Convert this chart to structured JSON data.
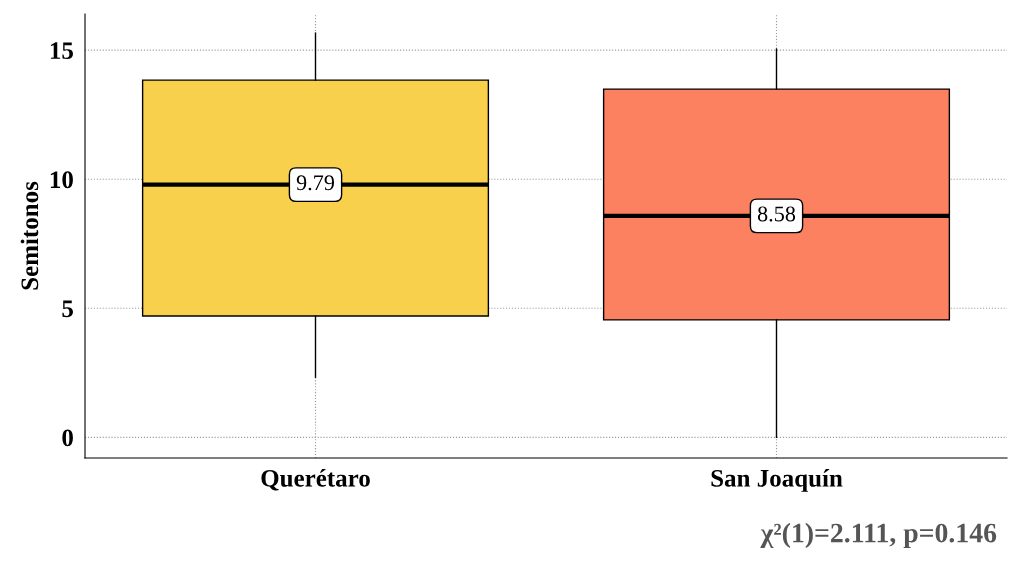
{
  "chart_data": {
    "type": "box",
    "ylabel": "Semitonos",
    "categories": [
      "Querétaro",
      "San Joaquín"
    ],
    "colors": [
      "#f9d04c",
      "#fc8161"
    ],
    "boxes": [
      {
        "low": 2.33,
        "q1": 4.7,
        "median": 9.79,
        "q3": 13.84,
        "high": 15.66
      },
      {
        "low": 0,
        "q1": 4.55,
        "median": 8.58,
        "q3": 13.49,
        "high": 15.04
      }
    ],
    "value_labels": [
      "9.79",
      "8.58"
    ],
    "ylim": [
      -0.8,
      16.4
    ],
    "yticks": [
      0,
      5,
      10,
      15
    ],
    "grid": true,
    "annotations": [
      "χ²(1)=2.111, p=0.146"
    ]
  }
}
